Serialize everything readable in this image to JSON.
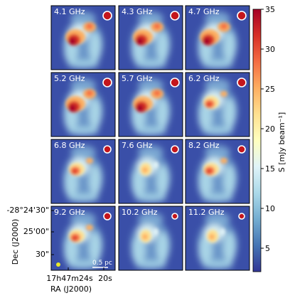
{
  "panels": [
    {
      "label": "4.1 GHz"
    },
    {
      "label": "4.3 GHz"
    },
    {
      "label": "4.7 GHz"
    },
    {
      "label": "5.2 GHz"
    },
    {
      "label": "5.7 GHz"
    },
    {
      "label": "6.2 GHz"
    },
    {
      "label": "6.8 GHz"
    },
    {
      "label": "7.6 GHz"
    },
    {
      "label": "8.2 GHz"
    },
    {
      "label": "9.2 GHz"
    },
    {
      "label": "10.2 GHz"
    },
    {
      "label": "11.2 GHz"
    }
  ],
  "axes": {
    "ylabel": "Dec (J2000)",
    "xlabel": "RA (J2000)",
    "yticks": [
      "-28°24'30\"",
      "25'00\"",
      "30\""
    ],
    "xticks": [
      "17h47m24s",
      "20s"
    ]
  },
  "scalebar": {
    "label": "0.5 pc"
  },
  "colorbar": {
    "label": "S [mJy beam⁻¹]",
    "ticks": [
      "35",
      "30",
      "25",
      "20",
      "15",
      "10",
      "5"
    ],
    "min": 2,
    "max": 35,
    "colormap": "RdYlBu_r",
    "colors": [
      "#313695",
      "#4575b4",
      "#74add1",
      "#abd9e9",
      "#e0f3f8",
      "#ffffbf",
      "#fee090",
      "#fdae61",
      "#f46d43",
      "#d73027",
      "#a50026"
    ]
  },
  "colors": {
    "background": "#3a4fa8",
    "beam": "#c4161c",
    "beam_bottom_left": "#e8e82a"
  }
}
